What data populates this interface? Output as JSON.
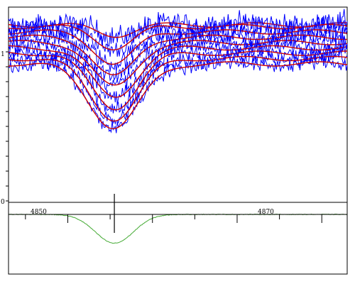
{
  "chart_data": {
    "type": "line",
    "title": "",
    "xlabel": "",
    "ylabel": "",
    "xlim": [
      4843,
      4883
    ],
    "x_ticks": [
      {
        "value": 4850,
        "label": "4850"
      },
      {
        "value": 4870,
        "label": "4870"
      }
    ],
    "y_tick_labels": [
      {
        "text": "1"
      },
      {
        "text": "0"
      }
    ],
    "line_center": 4855.5,
    "grid": false,
    "legend": "none",
    "colors": {
      "observed": "#0000ff",
      "model": "#cc0000",
      "mean_profile": "#44aa33",
      "axes": "#000000"
    },
    "top_panel": {
      "ylim": [
        0,
        1.1
      ],
      "series": [
        {
          "continuum": 1.0,
          "depth": 0.06,
          "noise": 0.06
        },
        {
          "continuum": 0.99,
          "depth": 0.12,
          "noise": 0.055
        },
        {
          "continuum": 0.96,
          "depth": 0.18,
          "noise": 0.05
        },
        {
          "continuum": 0.93,
          "depth": 0.22,
          "noise": 0.05
        },
        {
          "continuum": 0.9,
          "depth": 0.25,
          "noise": 0.045
        },
        {
          "continuum": 0.87,
          "depth": 0.28,
          "noise": 0.045
        },
        {
          "continuum": 0.84,
          "depth": 0.31,
          "noise": 0.045
        },
        {
          "continuum": 0.81,
          "depth": 0.34,
          "noise": 0.04
        },
        {
          "continuum": 0.78,
          "depth": 0.36,
          "noise": 0.04
        }
      ]
    },
    "bottom_panel": {
      "continuum": 1.0,
      "depth": 0.35,
      "ylim": [
        0.55,
        1.06
      ]
    }
  }
}
